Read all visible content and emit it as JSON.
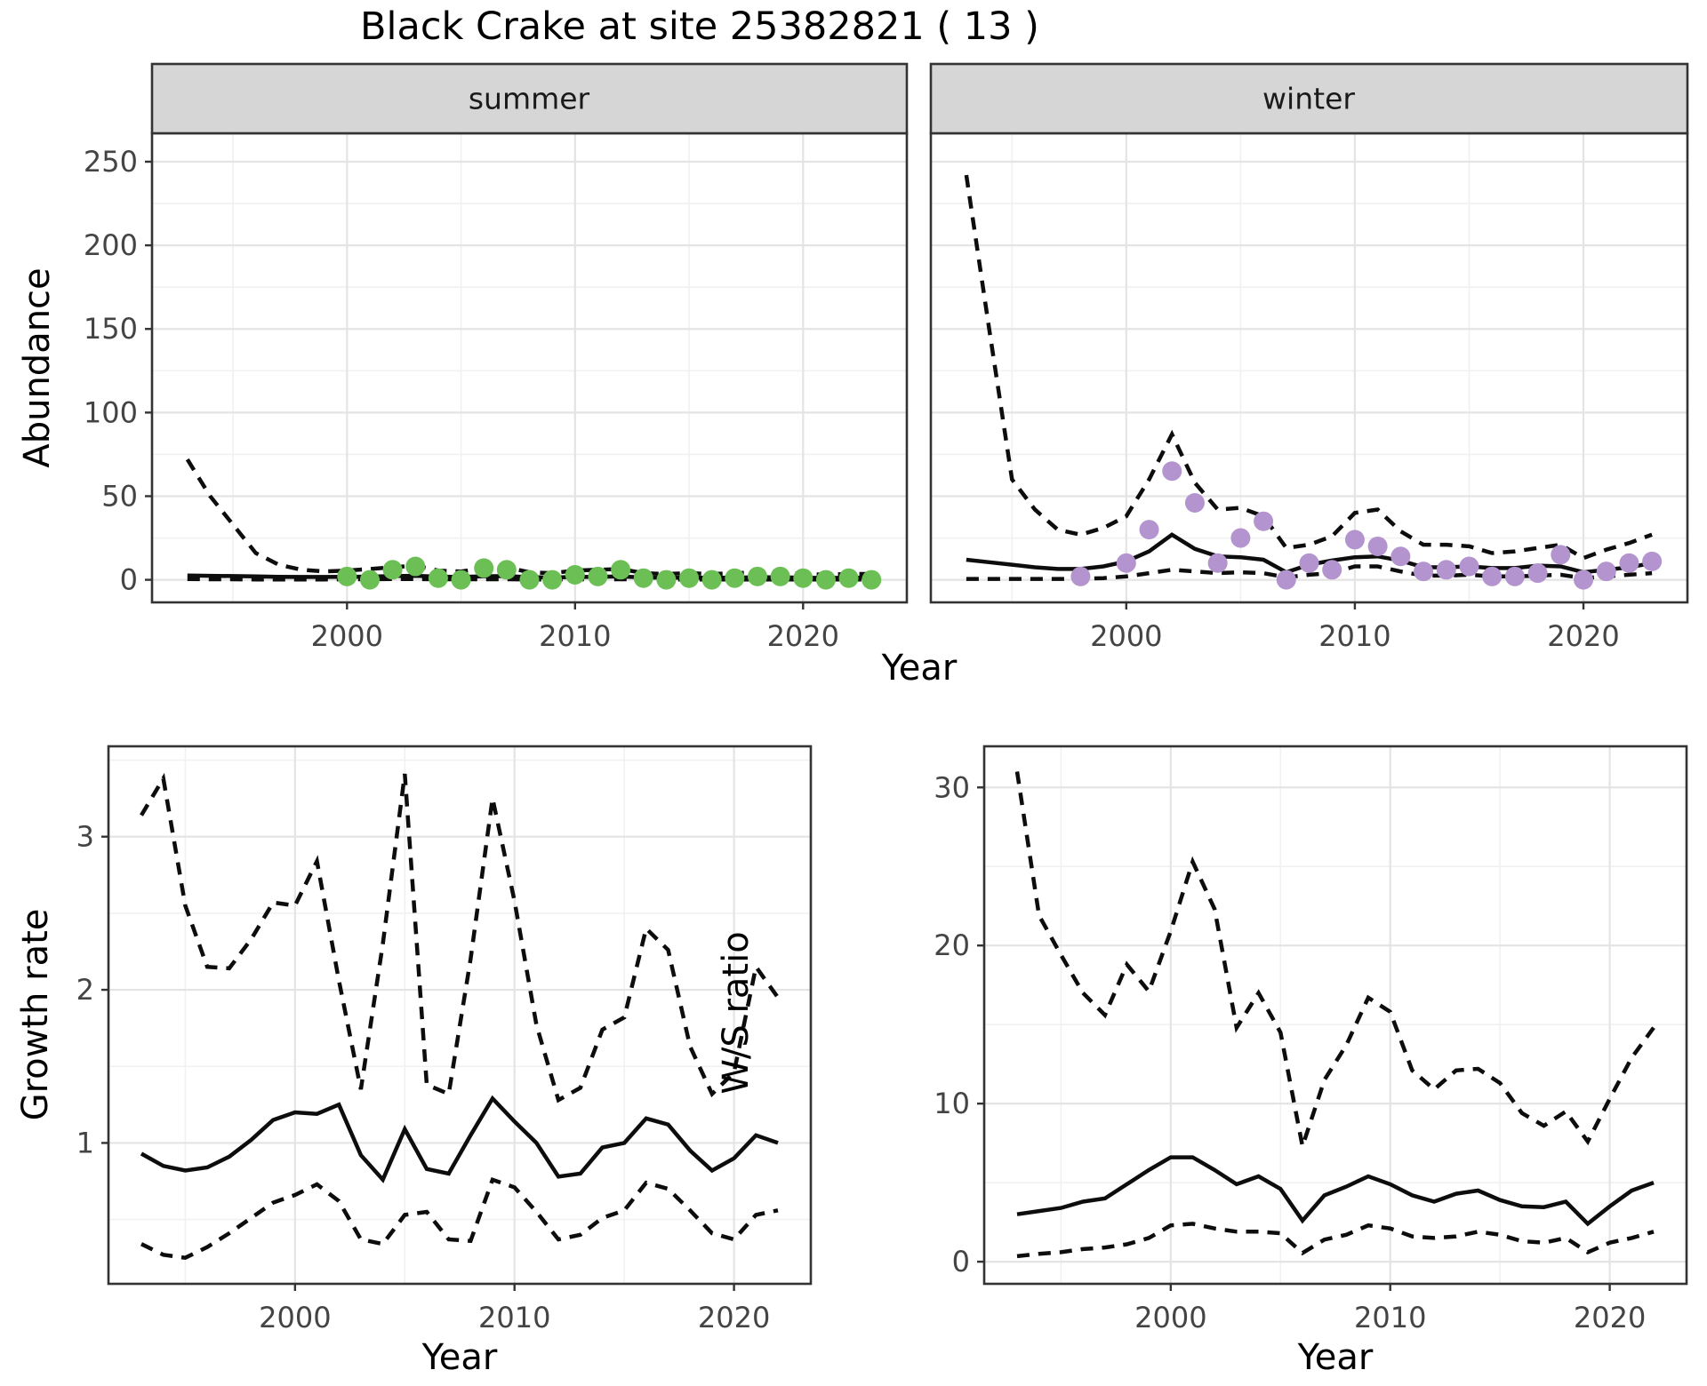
{
  "title": "Black Crake at site 25382821 ( 13 )",
  "colors": {
    "summer_dot": "#6cbf55",
    "winter_dot": "#b494ce",
    "line": "#0d0d0d",
    "grid_major": "#e4e4e4",
    "grid_minor": "#f1f1f1",
    "strip_fill": "#d6d6d6",
    "panel_border": "#333333",
    "tick_text": "#444444"
  },
  "chart_data": [
    {
      "id": "abundance-summer",
      "type": "line",
      "facet_label": "summer",
      "xlabel": "Year",
      "ylabel": "Abundance",
      "xlim": [
        1991.45,
        2024.55
      ],
      "ylim": [
        -13.5,
        267
      ],
      "xticks": [
        2000,
        2010,
        2020
      ],
      "yticks": [
        0,
        50,
        100,
        150,
        200,
        250
      ],
      "x": [
        1993,
        1994,
        1995,
        1996,
        1997,
        1998,
        1999,
        2000,
        2001,
        2002,
        2003,
        2004,
        2005,
        2006,
        2007,
        2008,
        2009,
        2010,
        2011,
        2012,
        2013,
        2014,
        2015,
        2016,
        2017,
        2018,
        2019,
        2020,
        2021,
        2022,
        2023
      ],
      "series": [
        {
          "name": "median",
          "style": "solid",
          "values": [
            2.6,
            2.4,
            2.2,
            2.0,
            1.8,
            1.7,
            1.7,
            1.8,
            1.9,
            2.2,
            2.4,
            1.9,
            1.7,
            2.1,
            2.2,
            1.6,
            1.4,
            1.7,
            1.8,
            2.0,
            1.4,
            1.2,
            1.3,
            1.2,
            1.3,
            1.5,
            1.5,
            1.2,
            1.1,
            1.2,
            1.2
          ]
        },
        {
          "name": "upper_ci",
          "style": "dashed",
          "values": [
            72,
            50,
            33,
            16,
            9,
            6,
            5,
            5.5,
            6.5,
            7.5,
            8.5,
            5.5,
            5,
            7,
            7.5,
            4.5,
            4,
            5.5,
            6,
            6.5,
            4,
            3.5,
            4,
            3.5,
            4,
            4.5,
            4.5,
            3.5,
            3,
            3.5,
            3.5
          ]
        },
        {
          "name": "lower_ci",
          "style": "dashed",
          "values": [
            0.4,
            0.3,
            0.3,
            0.2,
            0.2,
            0.2,
            0.2,
            0.3,
            0.3,
            0.4,
            0.4,
            0.3,
            0.3,
            0.3,
            0.3,
            0.2,
            0.2,
            0.3,
            0.3,
            0.3,
            0.2,
            0.2,
            0.2,
            0.2,
            0.2,
            0.2,
            0.2,
            0.2,
            0.2,
            0.2,
            0.2
          ]
        },
        {
          "name": "observed_counts",
          "style": "points",
          "color_key": "summer_dot",
          "x": [
            2000,
            2001,
            2002,
            2003,
            2004,
            2005,
            2006,
            2007,
            2008,
            2009,
            2010,
            2011,
            2012,
            2013,
            2014,
            2015,
            2016,
            2017,
            2018,
            2019,
            2020,
            2021,
            2022,
            2023
          ],
          "values": [
            2,
            0,
            6,
            8,
            1,
            0,
            7,
            6,
            0,
            0,
            3,
            2,
            6,
            1,
            0,
            1,
            0,
            1,
            2,
            2,
            1,
            0,
            1,
            0
          ]
        }
      ]
    },
    {
      "id": "abundance-winter",
      "type": "line",
      "facet_label": "winter",
      "xlabel": "Year",
      "ylabel": "Abundance",
      "xlim": [
        1991.45,
        2024.55
      ],
      "ylim": [
        -13.5,
        267
      ],
      "xticks": [
        2000,
        2010,
        2020
      ],
      "yticks": [
        0,
        50,
        100,
        150,
        200,
        250
      ],
      "x": [
        1993,
        1994,
        1995,
        1996,
        1997,
        1998,
        1999,
        2000,
        2001,
        2002,
        2003,
        2004,
        2005,
        2006,
        2007,
        2008,
        2009,
        2010,
        2011,
        2012,
        2013,
        2014,
        2015,
        2016,
        2017,
        2018,
        2019,
        2020,
        2021,
        2022,
        2023
      ],
      "series": [
        {
          "name": "median",
          "style": "solid",
          "values": [
            12,
            10.5,
            9,
            7.5,
            6.5,
            6.5,
            8,
            11,
            17,
            27,
            18.5,
            14,
            13.5,
            12,
            4.5,
            9,
            11.5,
            13.5,
            14,
            11.5,
            7.5,
            7.5,
            8,
            7,
            7,
            8.5,
            8,
            4.5,
            6,
            7.5,
            10
          ]
        },
        {
          "name": "upper_ci",
          "style": "dashed",
          "values": [
            242,
            150,
            60,
            42,
            30,
            27,
            31,
            38,
            60,
            87,
            58,
            42,
            43,
            38,
            19,
            21,
            26,
            40,
            42,
            29,
            21,
            21,
            20,
            16,
            17,
            19,
            21,
            13,
            18,
            22,
            27
          ]
        },
        {
          "name": "lower_ci",
          "style": "dashed",
          "values": [
            0.5,
            0.5,
            0.5,
            0.5,
            0.5,
            0.5,
            1,
            2,
            4,
            6,
            5,
            4,
            4.5,
            4,
            1.5,
            3,
            4,
            8,
            8,
            5,
            2.5,
            2.5,
            3,
            2,
            2,
            2.5,
            3,
            1,
            2,
            3,
            4
          ]
        },
        {
          "name": "observed_counts",
          "style": "points",
          "color_key": "winter_dot",
          "x": [
            1998,
            2000,
            2001,
            2002,
            2003,
            2004,
            2005,
            2006,
            2007,
            2008,
            2009,
            2010,
            2011,
            2012,
            2013,
            2014,
            2015,
            2016,
            2017,
            2018,
            2019,
            2020,
            2021,
            2022,
            2023
          ],
          "values": [
            2,
            10,
            30,
            65,
            46,
            10,
            25,
            35,
            0,
            10,
            6,
            24,
            20,
            14,
            5,
            6,
            8,
            2,
            2,
            4,
            15,
            0,
            5,
            10,
            11
          ]
        }
      ]
    },
    {
      "id": "growth-rate",
      "type": "line",
      "facet_label": "",
      "xlabel": "Year",
      "ylabel": "Growth rate",
      "xlim": [
        1991.5,
        2023.5
      ],
      "ylim": [
        0.08,
        3.59
      ],
      "xticks": [
        2000,
        2010,
        2020
      ],
      "yticks": [
        1,
        2,
        3
      ],
      "x": [
        1993,
        1994,
        1995,
        1996,
        1997,
        1998,
        1999,
        2000,
        2001,
        2002,
        2003,
        2004,
        2005,
        2006,
        2007,
        2008,
        2009,
        2010,
        2011,
        2012,
        2013,
        2014,
        2015,
        2016,
        2017,
        2018,
        2019,
        2020,
        2021,
        2022
      ],
      "series": [
        {
          "name": "median",
          "style": "solid",
          "values": [
            0.93,
            0.85,
            0.82,
            0.84,
            0.91,
            1.02,
            1.15,
            1.2,
            1.19,
            1.25,
            0.92,
            0.76,
            1.09,
            0.83,
            0.8,
            1.05,
            1.29,
            1.14,
            1.0,
            0.78,
            0.8,
            0.97,
            1.0,
            1.16,
            1.12,
            0.95,
            0.82,
            0.9,
            1.05,
            1.0
          ]
        },
        {
          "name": "upper_ci",
          "style": "dashed",
          "values": [
            3.14,
            3.38,
            2.55,
            2.15,
            2.14,
            2.33,
            2.57,
            2.55,
            2.84,
            2.06,
            1.35,
            2.3,
            3.41,
            1.38,
            1.32,
            2.2,
            3.25,
            2.58,
            1.77,
            1.28,
            1.36,
            1.74,
            1.82,
            2.4,
            2.26,
            1.63,
            1.32,
            1.46,
            2.15,
            1.95
          ]
        },
        {
          "name": "lower_ci",
          "style": "dashed",
          "values": [
            0.34,
            0.27,
            0.25,
            0.32,
            0.41,
            0.51,
            0.61,
            0.66,
            0.73,
            0.62,
            0.37,
            0.34,
            0.53,
            0.55,
            0.37,
            0.36,
            0.76,
            0.71,
            0.55,
            0.37,
            0.4,
            0.51,
            0.56,
            0.74,
            0.7,
            0.56,
            0.41,
            0.37,
            0.53,
            0.56
          ]
        }
      ]
    },
    {
      "id": "ws-ratio",
      "type": "line",
      "facet_label": "",
      "xlabel": "Year",
      "ylabel": "W/S ratio",
      "xlim": [
        1991.5,
        2023.5
      ],
      "ylim": [
        -1.4,
        32.6
      ],
      "xticks": [
        2000,
        2010,
        2020
      ],
      "yticks": [
        0,
        10,
        20,
        30
      ],
      "x": [
        1993,
        1994,
        1995,
        1996,
        1997,
        1998,
        1999,
        2000,
        2001,
        2002,
        2003,
        2004,
        2005,
        2006,
        2007,
        2008,
        2009,
        2010,
        2011,
        2012,
        2013,
        2014,
        2015,
        2016,
        2017,
        2018,
        2019,
        2020,
        2021,
        2022
      ],
      "series": [
        {
          "name": "median",
          "style": "solid",
          "values": [
            3.0,
            3.2,
            3.4,
            3.8,
            4.0,
            4.9,
            5.8,
            6.6,
            6.6,
            5.8,
            4.9,
            5.4,
            4.6,
            2.6,
            4.2,
            4.75,
            5.4,
            4.9,
            4.2,
            3.8,
            4.3,
            4.5,
            3.9,
            3.5,
            3.45,
            3.8,
            2.4,
            3.5,
            4.5,
            5.0
          ]
        },
        {
          "name": "upper_ci",
          "style": "dashed",
          "values": [
            31,
            21.9,
            19.4,
            17.0,
            15.6,
            18.8,
            17.1,
            20.9,
            25.3,
            22.3,
            14.8,
            17.0,
            14.5,
            7.3,
            11.5,
            13.7,
            16.7,
            15.8,
            12.1,
            10.9,
            12.1,
            12.2,
            11.3,
            9.4,
            8.6,
            9.5,
            7.6,
            10.3,
            12.9,
            14.8
          ]
        },
        {
          "name": "lower_ci",
          "style": "dashed",
          "values": [
            0.35,
            0.5,
            0.6,
            0.8,
            0.9,
            1.1,
            1.5,
            2.3,
            2.4,
            2.1,
            1.9,
            1.9,
            1.8,
            0.55,
            1.4,
            1.7,
            2.3,
            2.1,
            1.6,
            1.5,
            1.6,
            1.9,
            1.7,
            1.3,
            1.2,
            1.5,
            0.6,
            1.2,
            1.5,
            1.9
          ]
        }
      ]
    }
  ]
}
